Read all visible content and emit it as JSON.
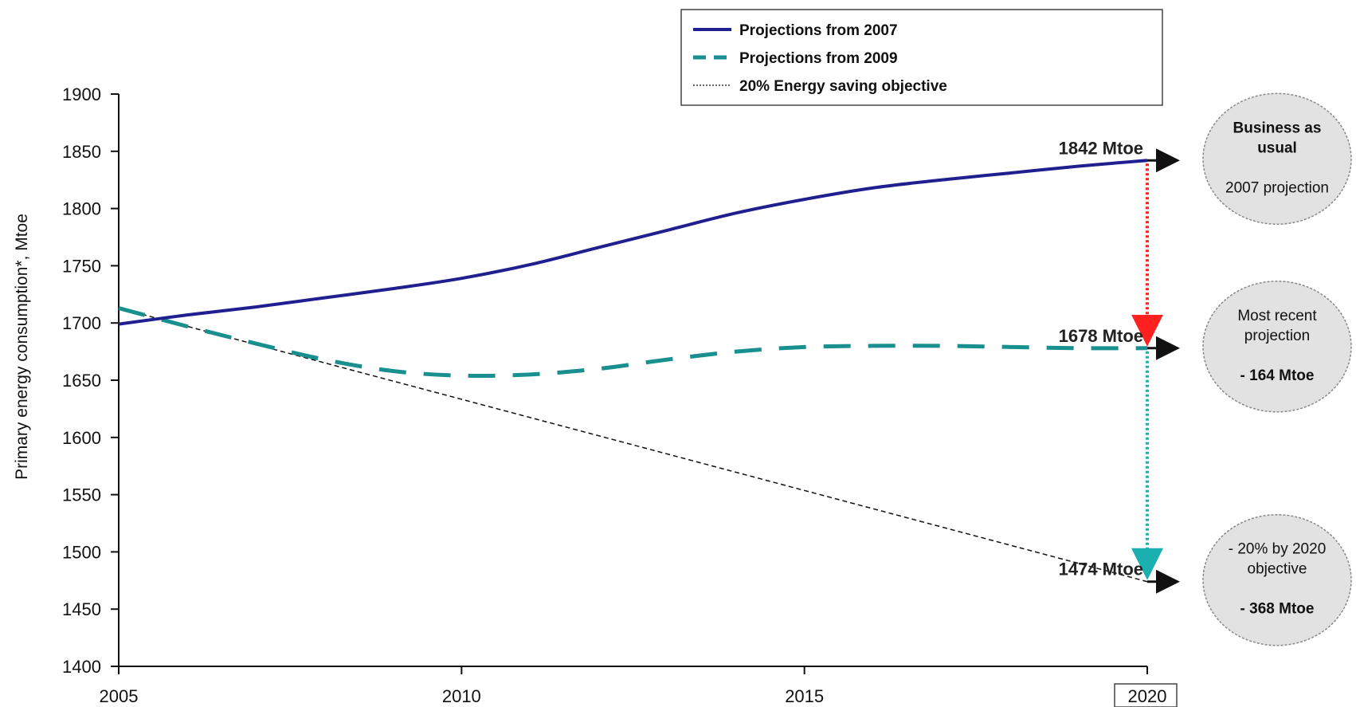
{
  "chart_data": {
    "type": "line",
    "ylabel": "Primary energy consumption*, Mtoe",
    "xlabel": "",
    "x_ticks": [
      "2005",
      "2010",
      "2015",
      "2020"
    ],
    "y_ticks": [
      "1900",
      "1850",
      "1800",
      "1750",
      "1700",
      "1650",
      "1600",
      "1550",
      "1500",
      "1450",
      "1400"
    ],
    "xlim": [
      2005,
      2020
    ],
    "ylim": [
      1400,
      1900
    ],
    "highlighted_x_tick": "2020",
    "legend_position": "top-right",
    "series": [
      {
        "name": "Projections from 2007",
        "color": "#1f1f8f",
        "style": "solid",
        "x": [
          2005,
          2006,
          2007,
          2008,
          2009,
          2010,
          2011,
          2012,
          2013,
          2014,
          2015,
          2016,
          2017,
          2018,
          2019,
          2020
        ],
        "values": [
          1699,
          1707,
          1714,
          1722,
          1730,
          1739,
          1751,
          1766,
          1781,
          1796,
          1808,
          1818,
          1825,
          1831,
          1837,
          1842
        ]
      },
      {
        "name": "Projections from 2009",
        "color": "#1a8f8f",
        "style": "dashed",
        "x": [
          2005,
          2006,
          2007,
          2008,
          2009,
          2010,
          2011,
          2012,
          2013,
          2014,
          2015,
          2016,
          2017,
          2018,
          2019,
          2020
        ],
        "values": [
          1713,
          1697,
          1682,
          1668,
          1658,
          1654,
          1655,
          1660,
          1668,
          1675,
          1679,
          1680,
          1680,
          1679,
          1678,
          1678
        ]
      },
      {
        "name": "20% Energy saving objective",
        "color": "#111111",
        "style": "dotted",
        "x": [
          2005,
          2020
        ],
        "values": [
          1713,
          1474
        ]
      }
    ],
    "annotations": [
      {
        "label": "1842 Mtoe",
        "x": 2020,
        "y": 1842
      },
      {
        "label": "1678 Mtoe",
        "x": 2020,
        "y": 1678
      },
      {
        "label": "1474 Mtoe",
        "x": 2020,
        "y": 1474
      }
    ],
    "gap_arrows": [
      {
        "from": 1842,
        "to": 1678,
        "color": "#ff2020"
      },
      {
        "from": 1678,
        "to": 1474,
        "color": "#1ab0b0"
      }
    ],
    "bubbles": [
      {
        "line1": "Business as",
        "line2": "usual",
        "line3": "2007 projection",
        "at": 1842
      },
      {
        "line1": "Most recent",
        "line2": "projection",
        "line3": "- 164 Mtoe",
        "at": 1678
      },
      {
        "line1": "- 20% by 2020",
        "line2": "objective",
        "line3": "- 368 Mtoe",
        "at": 1474
      }
    ]
  }
}
